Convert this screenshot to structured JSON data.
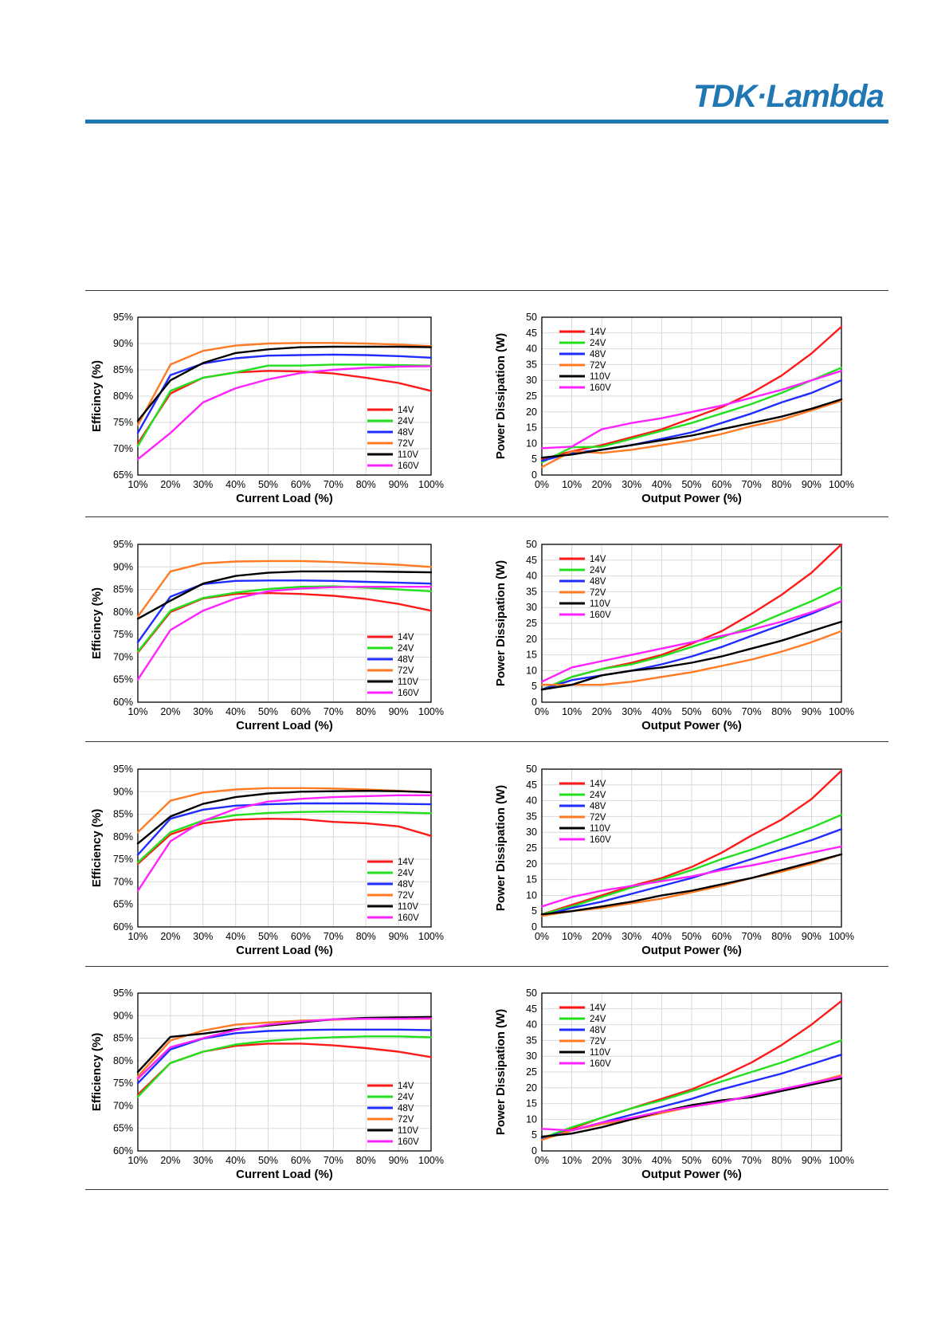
{
  "brand": {
    "name": "TDK·Lambda",
    "color": "#1f78b4"
  },
  "colors": {
    "14V": "#ff1a1a",
    "24V": "#22e01e",
    "48V": "#1f2cff",
    "72V": "#ff7a22",
    "110V": "#000000",
    "160V": "#ff22ff"
  },
  "chart_data": [
    {
      "type": "line",
      "xlabel": "Current Load (%)",
      "ylabel": "Efficincy (%)",
      "x": [
        10,
        20,
        30,
        40,
        50,
        60,
        70,
        80,
        90,
        100
      ],
      "xticks": [
        "10%",
        "20%",
        "30%",
        "40%",
        "50%",
        "60%",
        "70%",
        "80%",
        "90%",
        "100%"
      ],
      "ylim": [
        65,
        95
      ],
      "ystep": 5,
      "yfmt": "%",
      "grid": true,
      "legend": "bottom-right",
      "series": [
        {
          "name": "14V",
          "values": [
            71,
            80.5,
            83.5,
            84.5,
            84.8,
            84.7,
            84.3,
            83.5,
            82.5,
            81
          ]
        },
        {
          "name": "24V",
          "values": [
            70.5,
            81,
            83.5,
            84.5,
            85.8,
            85.8,
            86,
            86,
            85.9,
            85.8
          ]
        },
        {
          "name": "48V",
          "values": [
            73,
            84,
            86.2,
            87.2,
            87.7,
            87.8,
            87.9,
            87.8,
            87.6,
            87.3
          ]
        },
        {
          "name": "72V",
          "values": [
            74.5,
            86,
            88.6,
            89.6,
            90,
            90.1,
            90.1,
            90,
            89.8,
            89.5
          ]
        },
        {
          "name": "110V",
          "values": [
            75.3,
            83,
            86.3,
            88.2,
            88.9,
            89.3,
            89.4,
            89.4,
            89.4,
            89.3
          ]
        },
        {
          "name": "160V",
          "values": [
            68,
            73,
            78.8,
            81.5,
            83.2,
            84.4,
            85,
            85.4,
            85.6,
            85.7
          ]
        }
      ]
    },
    {
      "type": "line",
      "xlabel": "Output Power (%)",
      "ylabel": "Power Dissipation (W)",
      "x": [
        0,
        10,
        20,
        30,
        40,
        50,
        60,
        70,
        80,
        90,
        100
      ],
      "xticks": [
        "0%",
        "10%",
        "20%",
        "30%",
        "40%",
        "50%",
        "60%",
        "70%",
        "80%",
        "90%",
        "100%"
      ],
      "ylim": [
        0,
        50
      ],
      "ystep": 5,
      "yfmt": "",
      "grid": true,
      "legend": "top-left",
      "series": [
        {
          "name": "14V",
          "values": [
            5,
            7.5,
            9.5,
            12,
            14.5,
            18,
            21.5,
            26,
            31.5,
            38.5,
            47
          ]
        },
        {
          "name": "24V",
          "values": [
            4,
            8.8,
            9,
            11.5,
            14,
            16.5,
            19.5,
            22.5,
            26,
            30,
            34
          ]
        },
        {
          "name": "48V",
          "values": [
            4.5,
            7,
            8,
            9.5,
            11.5,
            13.5,
            16.5,
            19.5,
            23,
            26,
            30
          ]
        },
        {
          "name": "72V",
          "values": [
            2.5,
            7.5,
            7,
            8,
            9.5,
            11,
            13,
            15.5,
            17.5,
            20.5,
            23.5
          ]
        },
        {
          "name": "110V",
          "values": [
            5.5,
            6.5,
            8,
            9.5,
            11,
            12.5,
            14.5,
            16.5,
            18.5,
            21,
            24
          ]
        },
        {
          "name": "160V",
          "values": [
            8.5,
            9,
            14.5,
            16.5,
            18,
            20,
            22,
            24.5,
            27,
            30,
            33
          ]
        }
      ]
    },
    {
      "type": "line",
      "xlabel": "Current Load (%)",
      "ylabel": "Efficincy (%)",
      "x": [
        10,
        20,
        30,
        40,
        50,
        60,
        70,
        80,
        90,
        100
      ],
      "xticks": [
        "10%",
        "20%",
        "30%",
        "40%",
        "50%",
        "60%",
        "70%",
        "80%",
        "90%",
        "100%"
      ],
      "ylim": [
        60,
        95
      ],
      "ystep": 5,
      "yfmt": "%",
      "grid": true,
      "legend": "bottom-right",
      "series": [
        {
          "name": "14V",
          "values": [
            71,
            80,
            83,
            84,
            84.2,
            84,
            83.6,
            82.9,
            81.8,
            80.3
          ]
        },
        {
          "name": "24V",
          "values": [
            71.2,
            80.3,
            83.1,
            84.3,
            85.1,
            85.6,
            85.7,
            85.4,
            85,
            84.6
          ]
        },
        {
          "name": "48V",
          "values": [
            73.3,
            83.4,
            86.2,
            86.9,
            87,
            87,
            86.9,
            86.7,
            86.5,
            86.3
          ]
        },
        {
          "name": "72V",
          "values": [
            79,
            89,
            90.8,
            91.2,
            91.3,
            91.3,
            91.1,
            90.8,
            90.5,
            90
          ]
        },
        {
          "name": "110V",
          "values": [
            78.5,
            82.5,
            86.3,
            88,
            88.7,
            89,
            89,
            89,
            88.9,
            88.8
          ]
        },
        {
          "name": "160V",
          "values": [
            65,
            76,
            80.3,
            83,
            84.6,
            85.2,
            85.5,
            85.6,
            85.6,
            85.6
          ]
        }
      ]
    },
    {
      "type": "line",
      "xlabel": "Output Power (%)",
      "ylabel": "Power Dissipation (W)",
      "x": [
        0,
        10,
        20,
        30,
        40,
        50,
        60,
        70,
        80,
        90,
        100
      ],
      "xticks": [
        "0%",
        "10%",
        "20%",
        "30%",
        "40%",
        "50%",
        "60%",
        "70%",
        "80%",
        "90%",
        "100%"
      ],
      "ylim": [
        0,
        50
      ],
      "ystep": 5,
      "yfmt": "",
      "grid": true,
      "legend": "top-left",
      "series": [
        {
          "name": "14V",
          "values": [
            4,
            8,
            10.5,
            12.5,
            15,
            18.5,
            22.5,
            28,
            34,
            41,
            50
          ]
        },
        {
          "name": "24V",
          "values": [
            4,
            8,
            10.5,
            12,
            14.5,
            17.5,
            20.5,
            24,
            28,
            32,
            36.5
          ]
        },
        {
          "name": "48V",
          "values": [
            4,
            7,
            8.5,
            10,
            12,
            14.5,
            17.5,
            21,
            24.5,
            28,
            32
          ]
        },
        {
          "name": "72V",
          "values": [
            5.5,
            5.5,
            5.5,
            6.5,
            8,
            9.5,
            11.5,
            13.5,
            16,
            19,
            22.5
          ]
        },
        {
          "name": "110V",
          "values": [
            4,
            5.5,
            8.5,
            10,
            11,
            12.5,
            14.5,
            17,
            19.5,
            22.5,
            25.5
          ]
        },
        {
          "name": "160V",
          "values": [
            6.5,
            11,
            13,
            15,
            17,
            19,
            21,
            23,
            25.5,
            28.5,
            32
          ]
        }
      ]
    },
    {
      "type": "line",
      "xlabel": "Current Load (%)",
      "ylabel": "Efficiency (%)",
      "x": [
        10,
        20,
        30,
        40,
        50,
        60,
        70,
        80,
        90,
        100
      ],
      "xticks": [
        "10%",
        "20%",
        "30%",
        "40%",
        "50%",
        "60%",
        "70%",
        "80%",
        "90%",
        "100%"
      ],
      "ylim": [
        60,
        95
      ],
      "ystep": 5,
      "yfmt": "%",
      "grid": true,
      "legend": "bottom-right",
      "series": [
        {
          "name": "14V",
          "values": [
            74,
            80.5,
            83,
            83.8,
            84,
            83.9,
            83.3,
            83,
            82.3,
            80.2
          ]
        },
        {
          "name": "24V",
          "values": [
            74.3,
            81,
            83.6,
            84.8,
            85.3,
            85.5,
            85.6,
            85.5,
            85.4,
            85.2
          ]
        },
        {
          "name": "48V",
          "values": [
            76,
            84,
            86,
            86.9,
            87.2,
            87.4,
            87.4,
            87.4,
            87.3,
            87.2
          ]
        },
        {
          "name": "72V",
          "values": [
            81,
            88,
            89.8,
            90.5,
            90.8,
            90.8,
            90.7,
            90.5,
            90.2,
            89.9
          ]
        },
        {
          "name": "110V",
          "values": [
            78.5,
            84.5,
            87.3,
            88.8,
            89.6,
            90,
            90.1,
            90.2,
            90.1,
            89.9
          ]
        },
        {
          "name": "160V",
          "values": [
            68,
            79,
            83.5,
            86.2,
            87.8,
            88.4,
            88.8,
            89,
            89.2,
            89.2
          ]
        }
      ]
    },
    {
      "type": "line",
      "xlabel": "Output Power (%)",
      "ylabel": "Power Dissipation (W)",
      "x": [
        0,
        10,
        20,
        30,
        40,
        50,
        60,
        70,
        80,
        90,
        100
      ],
      "xticks": [
        "0%",
        "10%",
        "20%",
        "30%",
        "40%",
        "50%",
        "60%",
        "70%",
        "80%",
        "90%",
        "100%"
      ],
      "ylim": [
        0,
        50
      ],
      "ystep": 5,
      "yfmt": "",
      "grid": true,
      "legend": "top-left",
      "series": [
        {
          "name": "14V",
          "values": [
            4,
            7,
            10,
            13,
            15.5,
            19,
            23.5,
            29,
            34,
            40.5,
            49.5
          ]
        },
        {
          "name": "24V",
          "values": [
            4,
            6.5,
            9.5,
            12.5,
            15,
            18,
            21.5,
            24.5,
            28,
            31.5,
            35.5
          ]
        },
        {
          "name": "48V",
          "values": [
            3.5,
            6,
            8,
            10.5,
            13,
            15.5,
            18.5,
            21.5,
            24.5,
            27.5,
            31
          ]
        },
        {
          "name": "72V",
          "values": [
            3.5,
            5,
            6,
            7.5,
            9,
            11,
            13,
            15.5,
            17.5,
            20,
            23
          ]
        },
        {
          "name": "110V",
          "values": [
            4,
            5,
            6.5,
            8,
            10,
            11.5,
            13.5,
            15.5,
            18,
            20.5,
            23
          ]
        },
        {
          "name": "160V",
          "values": [
            6.5,
            9.5,
            11.5,
            13,
            14.5,
            16,
            18,
            19.5,
            21.5,
            23.5,
            25.5
          ]
        }
      ]
    },
    {
      "type": "line",
      "xlabel": "Current Load (%)",
      "ylabel": "Efficiency (%)",
      "x": [
        10,
        20,
        30,
        40,
        50,
        60,
        70,
        80,
        90,
        100
      ],
      "xticks": [
        "10%",
        "20%",
        "30%",
        "40%",
        "50%",
        "60%",
        "70%",
        "80%",
        "90%",
        "100%"
      ],
      "ylim": [
        60,
        95
      ],
      "ystep": 5,
      "yfmt": "%",
      "grid": true,
      "legend": "bottom-right",
      "series": [
        {
          "name": "14V",
          "values": [
            72.5,
            79.5,
            82,
            83.3,
            83.8,
            83.8,
            83.4,
            82.8,
            82,
            80.8
          ]
        },
        {
          "name": "24V",
          "values": [
            72,
            79.5,
            82,
            83.6,
            84.4,
            84.9,
            85.2,
            85.4,
            85.4,
            85.2
          ]
        },
        {
          "name": "48V",
          "values": [
            75,
            82.5,
            84.9,
            86.1,
            86.6,
            86.8,
            86.9,
            86.9,
            86.9,
            86.8
          ]
        },
        {
          "name": "72V",
          "values": [
            76.5,
            84.5,
            86.7,
            88,
            88.5,
            88.9,
            89.1,
            89.3,
            89.3,
            89.3
          ]
        },
        {
          "name": "110V",
          "values": [
            77.5,
            85.3,
            86,
            87,
            87.8,
            88.5,
            89.2,
            89.5,
            89.6,
            89.7
          ]
        },
        {
          "name": "160V",
          "values": [
            76,
            83,
            85,
            86.8,
            88,
            88.7,
            89.2,
            89.3,
            89.3,
            89.4
          ]
        }
      ]
    },
    {
      "type": "line",
      "xlabel": "Output Power (%)",
      "ylabel": "Power Dissipation (W)",
      "x": [
        0,
        10,
        20,
        30,
        40,
        50,
        60,
        70,
        80,
        90,
        100
      ],
      "xticks": [
        "0%",
        "10%",
        "20%",
        "30%",
        "40%",
        "50%",
        "60%",
        "70%",
        "80%",
        "90%",
        "100%"
      ],
      "ylim": [
        0,
        50
      ],
      "ystep": 5,
      "yfmt": "",
      "grid": true,
      "legend": "top-left",
      "series": [
        {
          "name": "14V",
          "values": [
            4,
            7,
            10.5,
            13.5,
            16.5,
            19.5,
            23.5,
            28,
            33.5,
            40,
            47.5
          ]
        },
        {
          "name": "24V",
          "values": [
            4,
            7.5,
            10.5,
            13.5,
            16,
            19,
            22,
            25,
            28,
            31.5,
            35
          ]
        },
        {
          "name": "48V",
          "values": [
            4,
            6.5,
            9,
            11.5,
            14,
            16.5,
            19.5,
            22,
            24.5,
            27.5,
            30.5
          ]
        },
        {
          "name": "72V",
          "values": [
            3.5,
            6.5,
            8.5,
            10,
            12,
            14,
            15.5,
            17.5,
            19.5,
            21.5,
            24
          ]
        },
        {
          "name": "110V",
          "values": [
            4.5,
            5.5,
            7.5,
            10,
            12.5,
            14.5,
            16,
            17,
            19,
            21,
            23
          ]
        },
        {
          "name": "160V",
          "values": [
            7,
            6.5,
            9,
            10.5,
            12.5,
            14,
            15.5,
            17.5,
            19.5,
            21.5,
            23.5
          ]
        }
      ]
    }
  ]
}
